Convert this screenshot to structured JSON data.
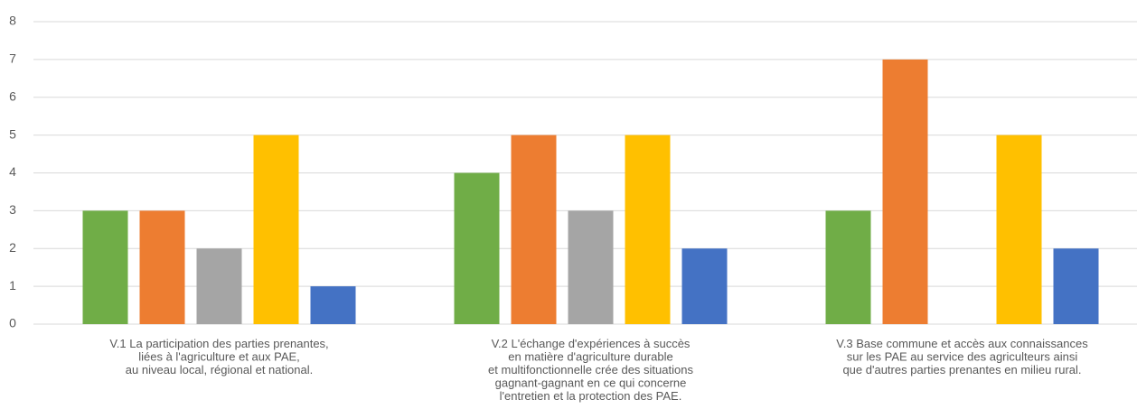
{
  "chart_data": {
    "type": "bar",
    "categories": [
      "V.1 La participation des parties prenantes,\nliées à l'agriculture et aux PAE,\nau niveau local, régional et national.",
      "V.2 L'échange d'expériences à succès\nen matière d'agriculture durable\net multifonctionnelle crée des situations\ngagnant-gagnant en ce qui concerne\nl'entretien et la protection des PAE.",
      "V.3 Base commune et accès aux connaissances\nsur les PAE au service des agriculteurs ainsi\nque d'autres parties prenantes en milieu rural."
    ],
    "series": [
      {
        "color": "#70ad47",
        "values": [
          3,
          4,
          3
        ]
      },
      {
        "color": "#ed7d31",
        "values": [
          3,
          5,
          7
        ]
      },
      {
        "color": "#a5a5a5",
        "values": [
          2,
          3,
          0
        ]
      },
      {
        "color": "#ffc000",
        "values": [
          5,
          5,
          5
        ]
      },
      {
        "color": "#4472c4",
        "values": [
          1,
          2,
          2
        ]
      }
    ],
    "ylim": [
      0,
      8
    ],
    "yticks": [
      0,
      1,
      2,
      3,
      4,
      5,
      6,
      7,
      8
    ],
    "grid": true
  }
}
